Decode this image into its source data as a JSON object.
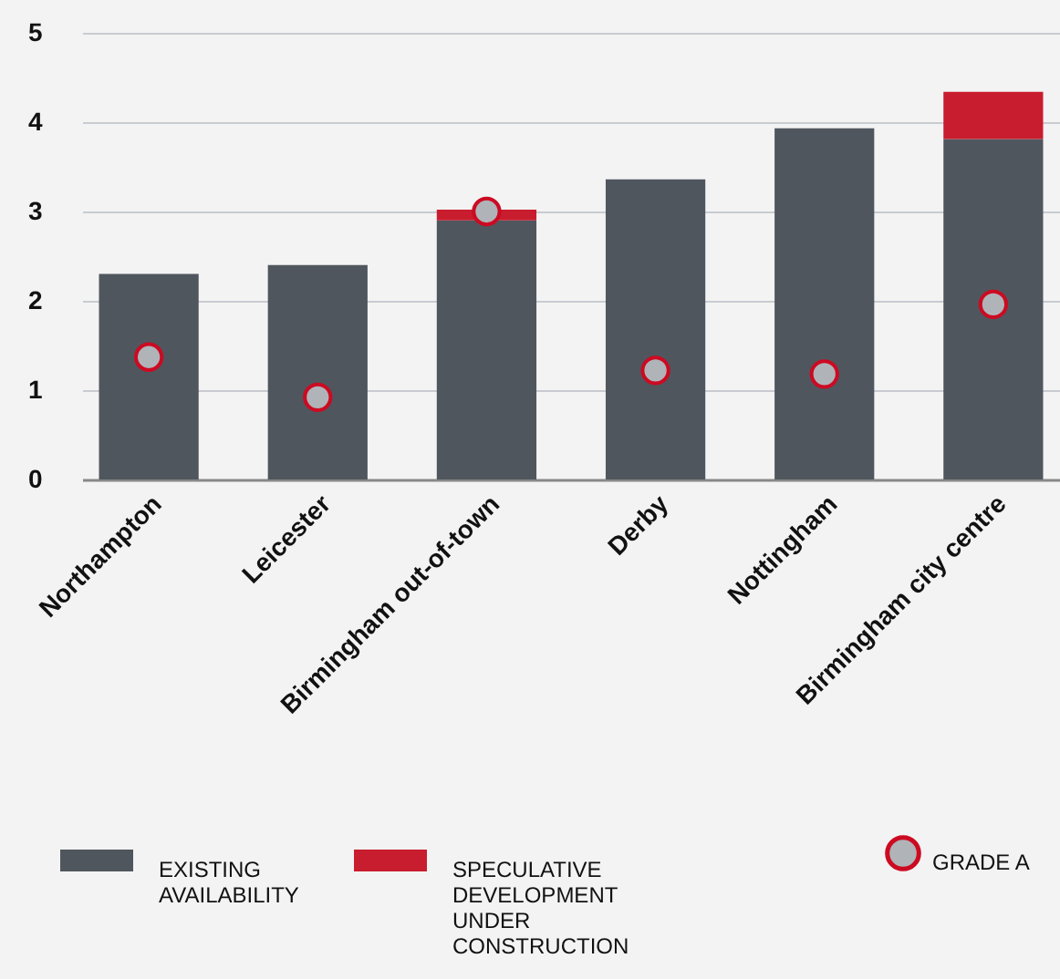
{
  "chart_data": {
    "type": "bar",
    "stacked": true,
    "categories": [
      "Northampton",
      "Leicester",
      "Birmingham out-of-town",
      "Derby",
      "Nottingham",
      "Birmingham city centre"
    ],
    "series": [
      {
        "name": "EXISTING AVAILABILITY",
        "color": "#50565e",
        "values": [
          2.3,
          2.4,
          2.9,
          3.36,
          3.93,
          3.81
        ]
      },
      {
        "name": "SPECULATIVE DEVELOPMENT UNDER CONSTRUCTION",
        "color": "#c81d2e",
        "values": [
          0,
          0,
          0.12,
          0,
          0,
          0.53
        ]
      },
      {
        "name": "GRADE A",
        "type": "scatter",
        "color": "#b0b3b8",
        "x": [
          "Northampton",
          "Leicester",
          "Birmingham out-of-town",
          "Derby",
          "Nottingham",
          "Birmingham city centre"
        ],
        "values": [
          1.37,
          0.92,
          3.0,
          1.22,
          1.18,
          1.96
        ]
      }
    ],
    "ylim": [
      0,
      5
    ],
    "yticks": [
      0,
      1,
      2,
      3,
      4,
      5
    ],
    "grid": "y",
    "legend": "bottom",
    "marker": "circle"
  }
}
